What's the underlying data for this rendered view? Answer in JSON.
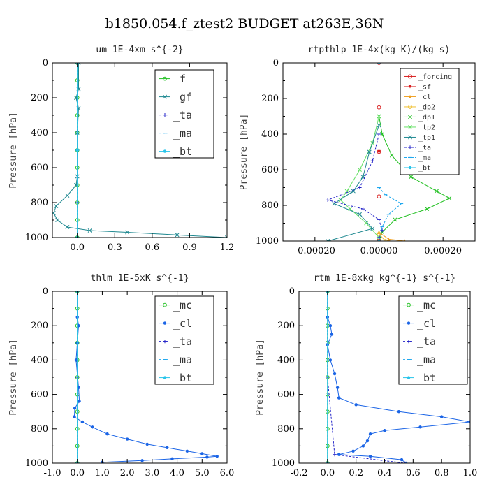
{
  "figure": {
    "title": "b1850.054.f_ztest2  BUDGET at263E,36N"
  },
  "colors": {
    "green": "#22c022",
    "blue": "#1a64e6",
    "cyan": "#28c4ea",
    "red": "#d81e1e",
    "orange": "#f0a020",
    "lime": "#66e066",
    "teal": "#1e8890",
    "navy": "#2020c8",
    "magenta": "#cc2ad0",
    "sky": "#20a8ee"
  },
  "chart_data": [
    {
      "type": "line",
      "title": "um  1E-4xm s^{-2}",
      "ylabel": "Pressure [hPa]",
      "xlim": [
        -0.2,
        1.2
      ],
      "ylim": [
        1000,
        0
      ],
      "xticks": [
        "0.0",
        "0.3",
        "0.6",
        "0.9",
        "1.2"
      ],
      "xtick_values": [
        0,
        0.3,
        0.6,
        0.9,
        1.2
      ],
      "yticks": [
        "0",
        "200",
        "400",
        "600",
        "800",
        "1000"
      ],
      "ytick_values": [
        0,
        200,
        400,
        600,
        800,
        1000
      ],
      "legend": [
        "_f",
        "_gf",
        "_ta",
        "_ma",
        "_bt"
      ],
      "series": [
        {
          "name": "_f",
          "color": "#22c022",
          "marker": "o",
          "points": [
            [
              0,
              0
            ],
            [
              0,
              100
            ],
            [
              0,
              200
            ],
            [
              0,
              300
            ],
            [
              0,
              400
            ],
            [
              0,
              500
            ],
            [
              0,
              600
            ],
            [
              0,
              700
            ],
            [
              0,
              800
            ],
            [
              0,
              900
            ],
            [
              0,
              1000
            ]
          ]
        },
        {
          "name": "_gf",
          "color": "#1e8890",
          "marker": "x",
          "points": [
            [
              0.01,
              0
            ],
            [
              0.01,
              150
            ],
            [
              -0.01,
              200
            ],
            [
              0.01,
              260
            ],
            [
              0,
              400
            ],
            [
              0,
              650
            ],
            [
              -0.01,
              700
            ],
            [
              -0.08,
              760
            ],
            [
              -0.17,
              820
            ],
            [
              -0.19,
              860
            ],
            [
              -0.16,
              900
            ],
            [
              -0.08,
              940
            ],
            [
              0.1,
              960
            ],
            [
              0.4,
              970
            ],
            [
              0.8,
              985
            ],
            [
              1.2,
              1000
            ]
          ]
        },
        {
          "name": "_ta",
          "color": "#2020c8",
          "marker": "+",
          "points": [
            [
              0,
              0
            ],
            [
              0,
              500
            ],
            [
              0,
              800
            ],
            [
              0,
              1000
            ]
          ]
        },
        {
          "name": "_ma",
          "color": "#20a8ee",
          "marker": "-",
          "points": [
            [
              0,
              0
            ],
            [
              0,
              500
            ],
            [
              0,
              1000
            ]
          ]
        },
        {
          "name": "_bt",
          "color": "#28c4ea",
          "marker": "*",
          "points": [
            [
              0,
              0
            ],
            [
              0,
              500
            ],
            [
              0,
              1000
            ]
          ]
        }
      ]
    },
    {
      "type": "line",
      "title": "rtpthlp  1E-4x(kg K)/(kg s)",
      "ylabel": "Pressure [hPa]",
      "xlim": [
        -0.0003,
        0.0003
      ],
      "ylim": [
        1000,
        0
      ],
      "xticks": [
        "-0.00020",
        "0.00000",
        "0.00020"
      ],
      "xtick_values": [
        -0.0002,
        0,
        0.0002
      ],
      "yticks": [
        "0",
        "200",
        "400",
        "600",
        "800",
        "1000"
      ],
      "ytick_values": [
        0,
        200,
        400,
        600,
        800,
        1000
      ],
      "legend": [
        "_forcing",
        "_sf",
        "_cl",
        "_dp2",
        "_dp1",
        "_tp2",
        "_tp1",
        "_ta",
        "_ma",
        "_bt"
      ],
      "series": [
        {
          "name": "_dp1",
          "color": "#22c022",
          "marker": "x",
          "points": [
            [
              0,
              300
            ],
            [
              1e-05,
              400
            ],
            [
              4e-05,
              520
            ],
            [
              0.0001,
              640
            ],
            [
              0.00018,
              720
            ],
            [
              0.00022,
              760
            ],
            [
              0.00015,
              820
            ],
            [
              5e-05,
              880
            ],
            [
              1e-05,
              950
            ],
            [
              0,
              1000
            ]
          ]
        },
        {
          "name": "_tp2",
          "color": "#66e066",
          "marker": "x",
          "points": [
            [
              0,
              300
            ],
            [
              -2e-05,
              450
            ],
            [
              -6e-05,
              600
            ],
            [
              -0.0001,
              720
            ],
            [
              -0.00012,
              770
            ],
            [
              -9e-05,
              820
            ],
            [
              -4e-05,
              900
            ],
            [
              0,
              980
            ]
          ]
        },
        {
          "name": "_tp1",
          "color": "#1e8890",
          "marker": "x",
          "points": [
            [
              0,
              350
            ],
            [
              -3e-05,
              500
            ],
            [
              -5e-05,
              640
            ],
            [
              -8e-05,
              720
            ],
            [
              -0.00014,
              790
            ],
            [
              -6e-05,
              850
            ],
            [
              -2e-05,
              930
            ],
            [
              -0.00016,
              1000
            ]
          ]
        },
        {
          "name": "_ta",
          "color": "#2020c8",
          "marker": "+",
          "points": [
            [
              0,
              400
            ],
            [
              -2e-05,
              550
            ],
            [
              -6e-05,
              700
            ],
            [
              -0.00016,
              770
            ],
            [
              -5e-05,
              820
            ],
            [
              0,
              880
            ],
            [
              1e-05,
              940
            ],
            [
              0,
              980
            ]
          ]
        },
        {
          "name": "_ma",
          "color": "#20a8ee",
          "marker": "-",
          "points": [
            [
              0,
              700
            ],
            [
              2e-05,
              740
            ],
            [
              7e-05,
              790
            ],
            [
              3e-05,
              850
            ],
            [
              1e-05,
              920
            ],
            [
              0,
              1000
            ]
          ]
        },
        {
          "name": "_forcing",
          "color": "#d81e1e",
          "marker": "o",
          "points": [
            [
              0,
              0
            ],
            [
              0,
              250
            ],
            [
              0,
              500
            ],
            [
              0,
              750
            ],
            [
              0,
              1000
            ]
          ]
        },
        {
          "name": "_sf",
          "color": "#d81e1e",
          "marker": "v",
          "points": [
            [
              0,
              0
            ],
            [
              0,
              500
            ],
            [
              0,
              1000
            ]
          ]
        },
        {
          "name": "_cl",
          "color": "#f0a020",
          "marker": "^",
          "points": [
            [
              0,
              950
            ],
            [
              3e-05,
              990
            ],
            [
              8e-05,
              1000
            ]
          ]
        },
        {
          "name": "_dp2",
          "color": "#f0c030",
          "marker": "o",
          "points": [
            [
              0,
              960
            ],
            [
              2e-05,
              1000
            ]
          ]
        },
        {
          "name": "_bt",
          "color": "#28c4ea",
          "marker": "*",
          "points": [
            [
              0,
              0
            ],
            [
              0,
              1000
            ]
          ]
        }
      ]
    },
    {
      "type": "line",
      "title": "thlm  1E-5xK s^{-1}",
      "ylabel": "Pressure [hPa]",
      "xlim": [
        -1.0,
        6.0
      ],
      "ylim": [
        1000,
        0
      ],
      "xticks": [
        "-1.0",
        "0.0",
        "1.0",
        "2.0",
        "3.0",
        "4.0",
        "5.0",
        "6.0"
      ],
      "xtick_values": [
        -1,
        0,
        1,
        2,
        3,
        4,
        5,
        6
      ],
      "yticks": [
        "0",
        "200",
        "400",
        "600",
        "800",
        "1000"
      ],
      "ytick_values": [
        0,
        200,
        400,
        600,
        800,
        1000
      ],
      "legend": [
        "_mc",
        "_cl",
        "_ta",
        "_ma",
        "_bt"
      ],
      "series": [
        {
          "name": "_mc",
          "color": "#22c022",
          "marker": "o",
          "points": [
            [
              0,
              0
            ],
            [
              0,
              100
            ],
            [
              0,
              200
            ],
            [
              0,
              300
            ],
            [
              0,
              400
            ],
            [
              0,
              500
            ],
            [
              0,
              600
            ],
            [
              0,
              700
            ],
            [
              0,
              800
            ],
            [
              0,
              900
            ],
            [
              0,
              1000
            ]
          ]
        },
        {
          "name": "_cl",
          "color": "#1a64e6",
          "marker": "*",
          "points": [
            [
              0,
              0
            ],
            [
              0,
              150
            ],
            [
              0.05,
              200
            ],
            [
              0,
              300
            ],
            [
              -0.05,
              400
            ],
            [
              0.05,
              560
            ],
            [
              0.08,
              640
            ],
            [
              -0.1,
              680
            ],
            [
              -0.12,
              730
            ],
            [
              0.2,
              760
            ],
            [
              0.6,
              790
            ],
            [
              1.2,
              830
            ],
            [
              2.0,
              860
            ],
            [
              2.8,
              890
            ],
            [
              3.6,
              910
            ],
            [
              4.4,
              930
            ],
            [
              5.0,
              945
            ],
            [
              5.6,
              960
            ],
            [
              5.2,
              965
            ],
            [
              3.8,
              975
            ],
            [
              2.6,
              985
            ],
            [
              1.0,
              995
            ]
          ]
        },
        {
          "name": "_ta",
          "color": "#2020c8",
          "marker": "+",
          "points": [
            [
              0,
              0
            ],
            [
              0,
              500
            ],
            [
              0,
              1000
            ]
          ]
        },
        {
          "name": "_ma",
          "color": "#20a8ee",
          "marker": "-",
          "points": [
            [
              0,
              0
            ],
            [
              0,
              1000
            ]
          ]
        },
        {
          "name": "_bt",
          "color": "#28c4ea",
          "marker": "*",
          "points": [
            [
              0,
              0
            ],
            [
              0,
              1000
            ]
          ]
        }
      ]
    },
    {
      "type": "line",
      "title": "rtm  1E-8xkg kg^{-1} s^{-1}",
      "ylabel": "Pressure [hPa]",
      "xlim": [
        -0.2,
        1.0
      ],
      "ylim": [
        1000,
        0
      ],
      "xticks": [
        "-0.2",
        "0.0",
        "0.2",
        "0.4",
        "0.6",
        "0.8",
        "1.0"
      ],
      "xtick_values": [
        -0.2,
        0,
        0.2,
        0.4,
        0.6,
        0.8,
        1.0
      ],
      "yticks": [
        "0",
        "200",
        "400",
        "600",
        "800",
        "1000"
      ],
      "ytick_values": [
        0,
        200,
        400,
        600,
        800,
        1000
      ],
      "legend": [
        "_mc",
        "_cl",
        "_ta",
        "_ma",
        "_bt"
      ],
      "series": [
        {
          "name": "_mc",
          "color": "#22c022",
          "marker": "o",
          "points": [
            [
              0,
              0
            ],
            [
              0,
              100
            ],
            [
              0,
              200
            ],
            [
              0,
              300
            ],
            [
              0,
              400
            ],
            [
              0,
              500
            ],
            [
              0,
              600
            ],
            [
              0,
              700
            ],
            [
              0,
              800
            ],
            [
              0,
              900
            ],
            [
              0,
              1000
            ]
          ]
        },
        {
          "name": "_cl",
          "color": "#1a64e6",
          "marker": "*",
          "points": [
            [
              0,
              0
            ],
            [
              0,
              150
            ],
            [
              0.02,
              200
            ],
            [
              0.03,
              250
            ],
            [
              0,
              310
            ],
            [
              0.02,
              400
            ],
            [
              0.05,
              480
            ],
            [
              0.07,
              560
            ],
            [
              0.08,
              620
            ],
            [
              0.2,
              660
            ],
            [
              0.5,
              700
            ],
            [
              0.8,
              730
            ],
            [
              1.0,
              760
            ],
            [
              0.65,
              790
            ],
            [
              0.4,
              810
            ],
            [
              0.3,
              830
            ],
            [
              0.28,
              870
            ],
            [
              0.25,
              900
            ],
            [
              0.18,
              930
            ],
            [
              0.08,
              950
            ],
            [
              0.3,
              960
            ],
            [
              0.52,
              980
            ],
            [
              0.55,
              1000
            ]
          ]
        },
        {
          "name": "_ta",
          "color": "#2020c8",
          "marker": "+",
          "points": [
            [
              0,
              0
            ],
            [
              0,
              500
            ],
            [
              0.05,
              950
            ],
            [
              0.54,
              1000
            ]
          ]
        },
        {
          "name": "_ma",
          "color": "#20a8ee",
          "marker": "-",
          "points": [
            [
              0,
              0
            ],
            [
              0,
              1000
            ]
          ]
        },
        {
          "name": "_bt",
          "color": "#28c4ea",
          "marker": "*",
          "points": [
            [
              0,
              0
            ],
            [
              0,
              1000
            ]
          ]
        }
      ]
    }
  ]
}
